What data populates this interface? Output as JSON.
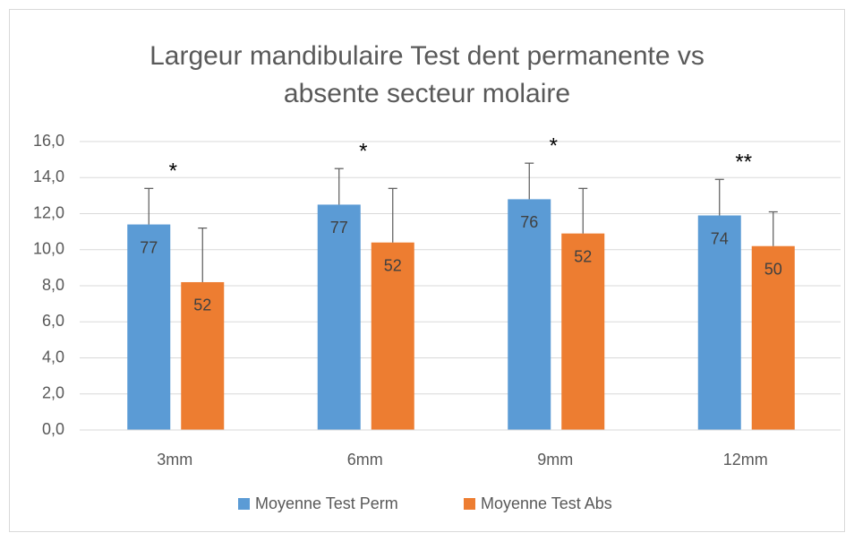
{
  "chart_data": {
    "type": "bar",
    "title": [
      "Largeur mandibulaire Test dent permanente vs",
      "absente secteur molaire"
    ],
    "categories": [
      "3mm",
      "6mm",
      "9mm",
      "12mm"
    ],
    "series": [
      {
        "name": "Moyenne Test Perm",
        "color": "#5b9bd5",
        "values": [
          11.4,
          12.5,
          12.8,
          11.9
        ],
        "errors": [
          2.0,
          2.0,
          2.0,
          2.0
        ],
        "labels": [
          "77",
          "77",
          "76",
          "74"
        ]
      },
      {
        "name": "Moyenne Test Abs",
        "color": "#ed7d31",
        "values": [
          8.2,
          10.4,
          10.9,
          10.2
        ],
        "errors": [
          3.0,
          3.0,
          2.5,
          1.9
        ],
        "labels": [
          "52",
          "52",
          "52",
          "50"
        ]
      }
    ],
    "annotations": [
      "*",
      "*",
      "*",
      "**"
    ],
    "ylim": [
      0,
      16
    ],
    "yticks": [
      {
        "value": 0,
        "label": "0,0"
      },
      {
        "value": 2,
        "label": "2,0"
      },
      {
        "value": 4,
        "label": "4,0"
      },
      {
        "value": 6,
        "label": "6,0"
      },
      {
        "value": 8,
        "label": "8,0"
      },
      {
        "value": 10,
        "label": "10,0"
      },
      {
        "value": 12,
        "label": "12,0"
      },
      {
        "value": 14,
        "label": "14,0"
      },
      {
        "value": 16,
        "label": "16,0"
      }
    ],
    "grid": true,
    "legend": "bottom"
  }
}
